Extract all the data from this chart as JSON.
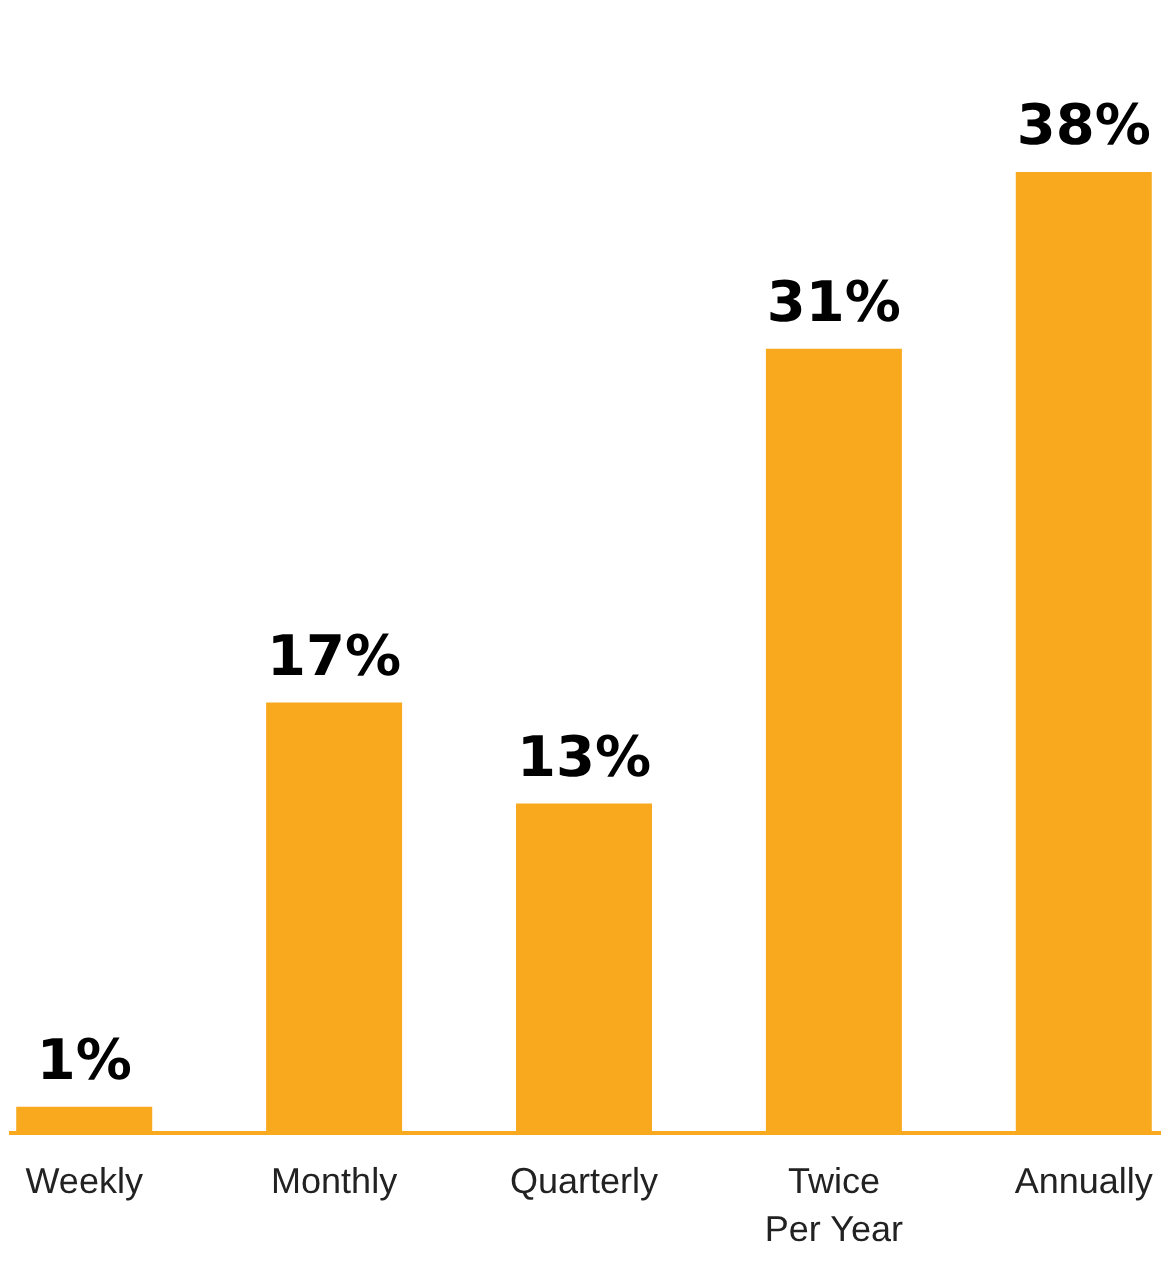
{
  "chart_data": {
    "type": "bar",
    "categories": [
      "Weekly",
      "Monthly",
      "Quarterly",
      "Twice Per Year",
      "Annually"
    ],
    "values": [
      1,
      17,
      13,
      31,
      38
    ],
    "value_labels": [
      "1%",
      "17%",
      "13%",
      "31%",
      "38%"
    ],
    "color": "#f9a91e"
  }
}
